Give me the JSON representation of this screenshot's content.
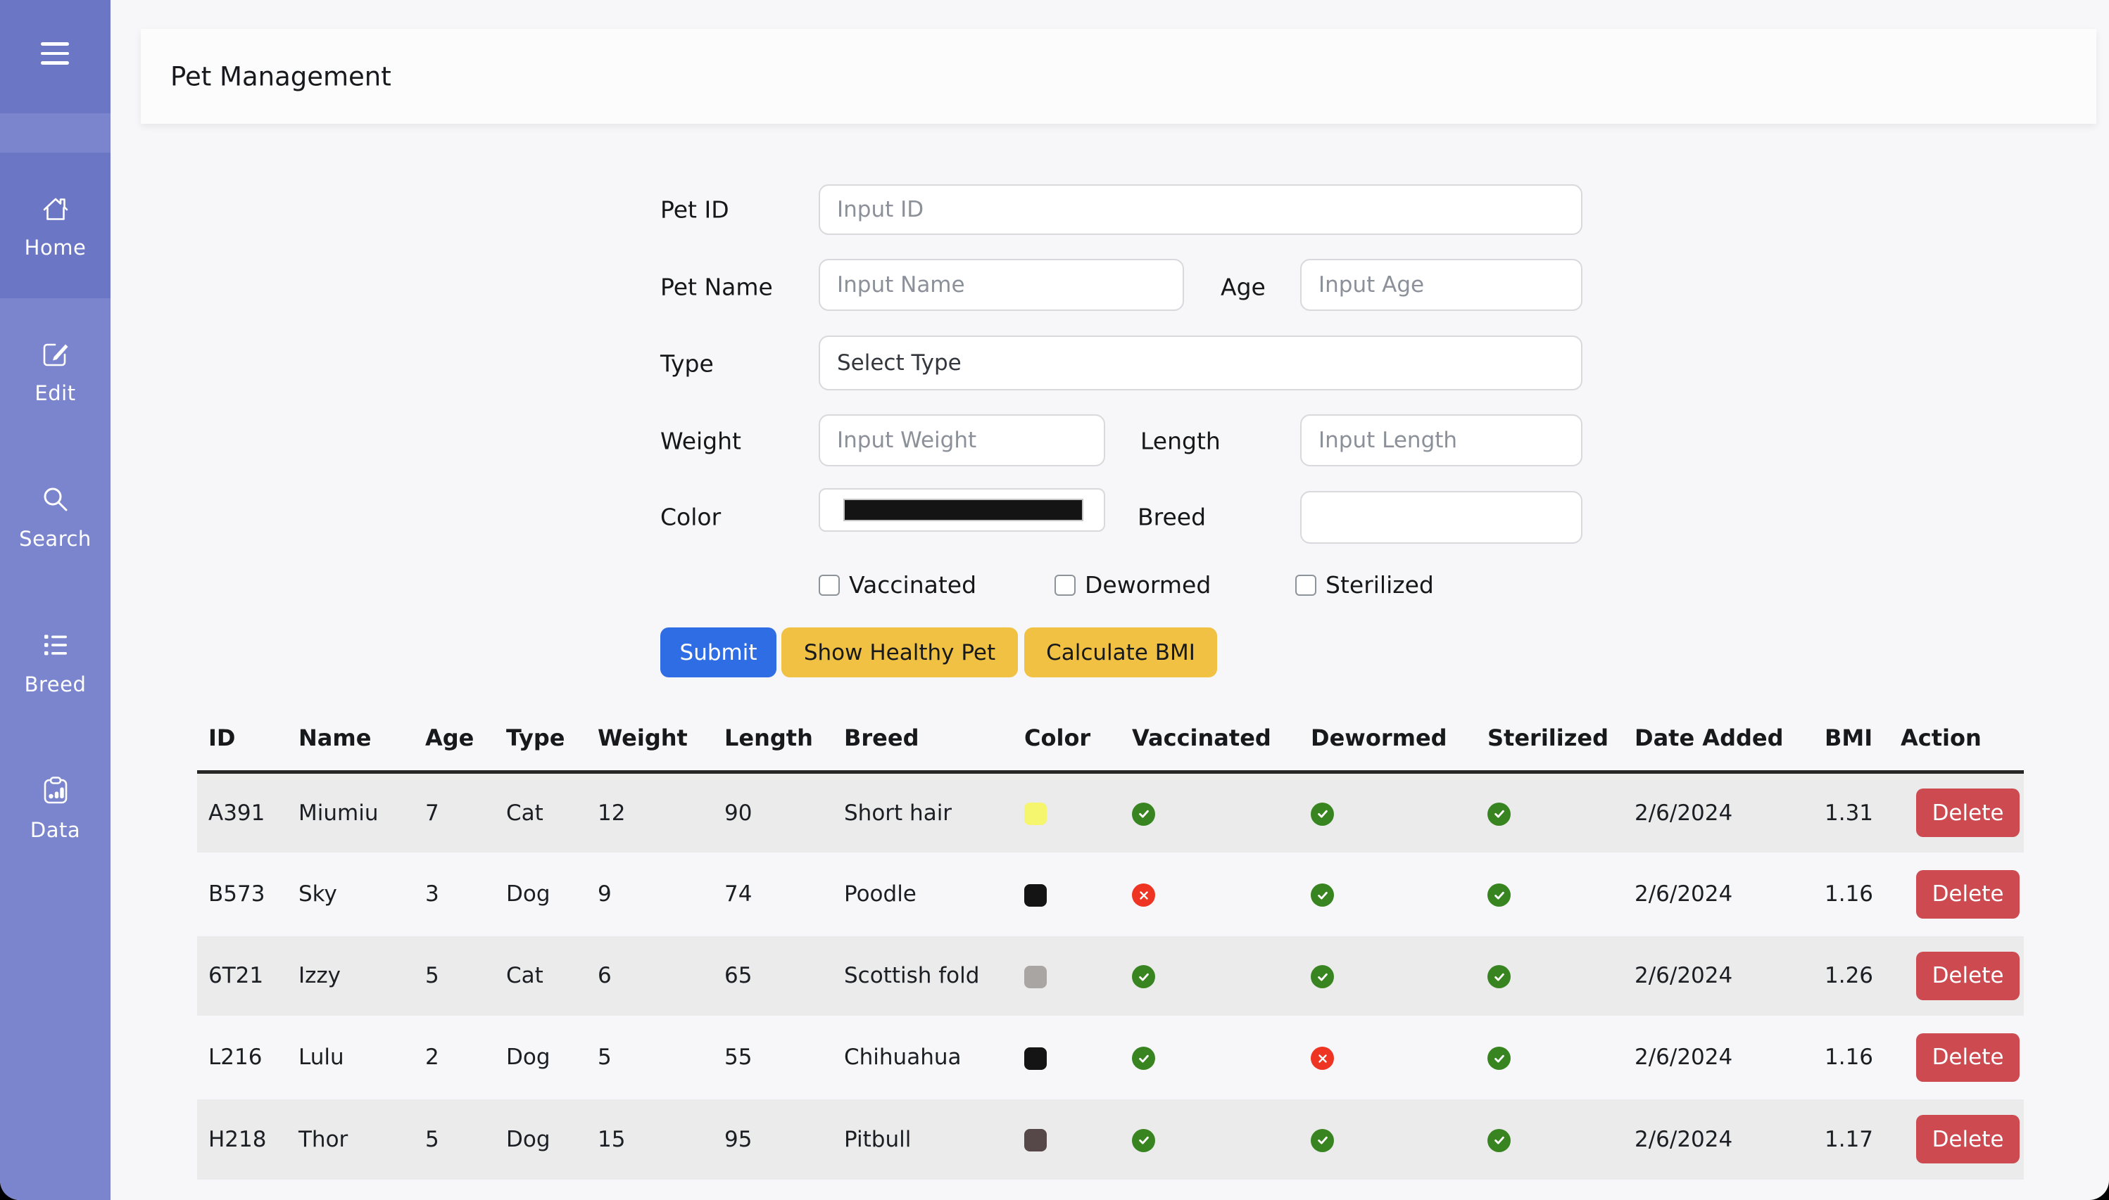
{
  "header": {
    "title": "Pet Management"
  },
  "sidebar": {
    "colors": {
      "base": "#7b85ce",
      "active": "#6b76c4"
    },
    "items": [
      {
        "label": "Home",
        "icon": "home-icon",
        "active": true
      },
      {
        "label": "Edit",
        "icon": "edit-icon",
        "active": false
      },
      {
        "label": "Search",
        "icon": "search-icon",
        "active": false
      },
      {
        "label": "Breed",
        "icon": "list-icon",
        "active": false
      },
      {
        "label": "Data",
        "icon": "clipboard-data-icon",
        "active": false
      }
    ]
  },
  "form": {
    "pet_id": {
      "label": "Pet ID",
      "placeholder": "Input ID",
      "value": ""
    },
    "pet_name": {
      "label": "Pet Name",
      "placeholder": "Input Name",
      "value": ""
    },
    "age": {
      "label": "Age",
      "placeholder": "Input Age",
      "value": ""
    },
    "type": {
      "label": "Type",
      "placeholder": "Select Type"
    },
    "weight": {
      "label": "Weight",
      "placeholder": "Input Weight",
      "value": ""
    },
    "length": {
      "label": "Length",
      "placeholder": "Input Length",
      "value": ""
    },
    "color": {
      "label": "Color",
      "value": "#141414"
    },
    "breed": {
      "label": "Breed",
      "value": ""
    },
    "checkboxes": [
      {
        "label": "Vaccinated",
        "checked": false
      },
      {
        "label": "Dewormed",
        "checked": false
      },
      {
        "label": "Sterilized",
        "checked": false
      }
    ],
    "buttons": [
      {
        "label": "Submit",
        "style": "primary",
        "color": "#2e6de4"
      },
      {
        "label": "Show Healthy Pet",
        "style": "warning",
        "color": "#f0c142"
      },
      {
        "label": "Calculate BMI",
        "style": "warning",
        "color": "#f0c142"
      }
    ]
  },
  "table": {
    "headers": [
      "ID",
      "Name",
      "Age",
      "Type",
      "Weight",
      "Length",
      "Breed",
      "Color",
      "Vaccinated",
      "Dewormed",
      "Sterilized",
      "Date Added",
      "BMI",
      "Action"
    ],
    "status_colors": {
      "yes": "#378420",
      "no": "#ee3423"
    },
    "delete_color": "#cc4a50",
    "rows": [
      {
        "id": "A391",
        "name": "Miumiu",
        "age": "7",
        "type": "Cat",
        "weight": "12",
        "length": "90",
        "breed": "Short hair",
        "color": "#f5f56e",
        "vaccinated": true,
        "dewormed": true,
        "sterilized": true,
        "date_added": "2/6/2024",
        "bmi": "1.31",
        "action": "Delete"
      },
      {
        "id": "B573",
        "name": "Sky",
        "age": "3",
        "type": "Dog",
        "weight": "9",
        "length": "74",
        "breed": "Poodle",
        "color": "#141414",
        "vaccinated": false,
        "dewormed": true,
        "sterilized": true,
        "date_added": "2/6/2024",
        "bmi": "1.16",
        "action": "Delete"
      },
      {
        "id": "6T21",
        "name": "Izzy",
        "age": "5",
        "type": "Cat",
        "weight": "6",
        "length": "65",
        "breed": "Scottish fold",
        "color": "#a8a5a3",
        "vaccinated": true,
        "dewormed": true,
        "sterilized": true,
        "date_added": "2/6/2024",
        "bmi": "1.26",
        "action": "Delete"
      },
      {
        "id": "L216",
        "name": "Lulu",
        "age": "2",
        "type": "Dog",
        "weight": "5",
        "length": "55",
        "breed": "Chihuahua",
        "color": "#141414",
        "vaccinated": true,
        "dewormed": false,
        "sterilized": true,
        "date_added": "2/6/2024",
        "bmi": "1.16",
        "action": "Delete"
      },
      {
        "id": "H218",
        "name": "Thor",
        "age": "5",
        "type": "Dog",
        "weight": "15",
        "length": "95",
        "breed": "Pitbull",
        "color": "#564848",
        "vaccinated": true,
        "dewormed": true,
        "sterilized": true,
        "date_added": "2/6/2024",
        "bmi": "1.17",
        "action": "Delete"
      }
    ]
  }
}
